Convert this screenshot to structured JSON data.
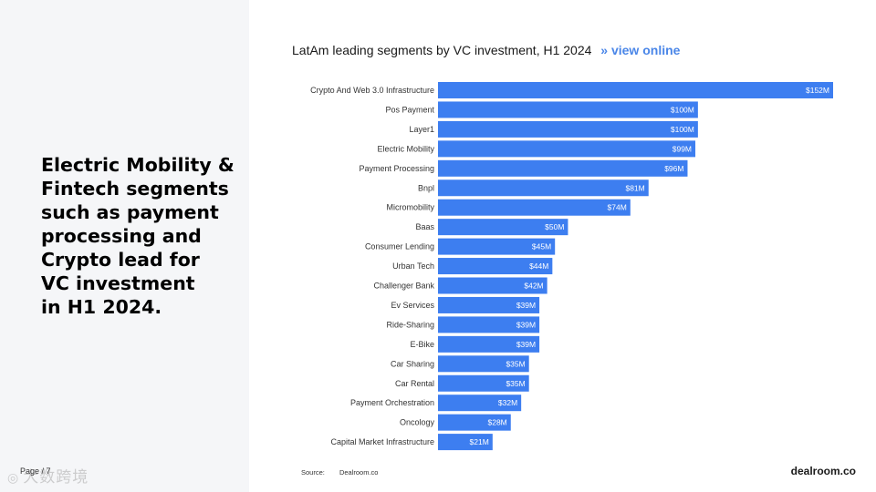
{
  "headline": "Electric Mobility &\nFintech segments\nsuch as payment\nprocessing and\nCrypto lead for\nVC investment\nin H1 2024.",
  "page_label": "Page / 7",
  "watermark": "大数跨境",
  "colors": {
    "bar": "#3d7ef0",
    "link": "#4a86e8",
    "panel": "#f5f6f8"
  },
  "chart_data": {
    "type": "bar",
    "orientation": "horizontal",
    "title": "LatAm leading segments by VC investment, H1 2024",
    "link_text": "» view online",
    "unit_prefix": "$",
    "unit_suffix": "M",
    "xlim": [
      0,
      160
    ],
    "categories": [
      "Crypto And Web 3.0 Infrastructure",
      "Pos Payment",
      "Layer1",
      "Electric Mobility",
      "Payment Processing",
      "Bnpl",
      "Micromobility",
      "Baas",
      "Consumer Lending",
      "Urban Tech",
      "Challenger Bank",
      "Ev Services",
      "Ride-Sharing",
      "E-Bike",
      "Car Sharing",
      "Car Rental",
      "Payment Orchestration",
      "Oncology",
      "Capital Market Infrastructure"
    ],
    "values": [
      152,
      100,
      100,
      99,
      96,
      81,
      74,
      50,
      45,
      44,
      42,
      39,
      39,
      39,
      35,
      35,
      32,
      28,
      21
    ],
    "value_labels": [
      "$152M",
      "$100M",
      "$100M",
      "$99M",
      "$96M",
      "$81M",
      "$74M",
      "$50M",
      "$45M",
      "$44M",
      "$42M",
      "$39M",
      "$39M",
      "$39M",
      "$35M",
      "$35M",
      "$32M",
      "$28M",
      "$21M"
    ]
  },
  "footer": {
    "source_label": "Source:",
    "source_value": "Dealroom.co",
    "brand": "dealroom.co"
  }
}
